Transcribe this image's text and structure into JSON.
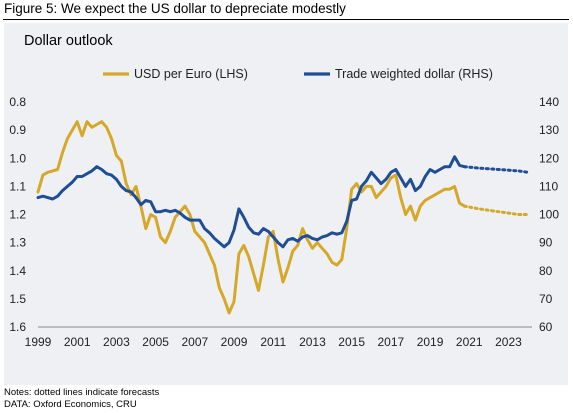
{
  "figure_title": "Figure 5: We expect the US dollar to depreciate modestly",
  "notes": [
    "Notes: dotted lines indicate forecasts",
    "DATA: Oxford Economics, CRU"
  ],
  "colors": {
    "usd_eur": "#d6a82a",
    "twd": "#1f4e96",
    "panel_bg": "#eef0f4"
  },
  "chart_data": {
    "type": "line",
    "title": "Dollar outlook",
    "xlabel": "",
    "ylabel_left": "",
    "ylabel_right": "",
    "x_ticks": [
      "1999",
      "2001",
      "2003",
      "2005",
      "2007",
      "2009",
      "2011",
      "2013",
      "2015",
      "2017",
      "2019",
      "2021",
      "2023"
    ],
    "y_left_ticks": [
      "0.8",
      "0.9",
      "1.0",
      "1.1",
      "1.2",
      "1.3",
      "1.4",
      "1.5",
      "1.6"
    ],
    "y_right_ticks": [
      "140",
      "130",
      "120",
      "110",
      "100",
      "90",
      "80",
      "70",
      "60"
    ],
    "y_left_range": [
      0.8,
      1.6
    ],
    "y_left_inverted": true,
    "y_right_range": [
      60,
      140
    ],
    "x_range": [
      1999,
      2024.2
    ],
    "grid": false,
    "legend_position": "top",
    "series": [
      {
        "name": "USD per Euro (LHS)",
        "axis": "left",
        "color": "#d6a82a",
        "actual": [
          [
            1999.0,
            1.12
          ],
          [
            1999.25,
            1.06
          ],
          [
            1999.5,
            1.05
          ],
          [
            2000.0,
            1.04
          ],
          [
            2000.25,
            0.98
          ],
          [
            2000.5,
            0.93
          ],
          [
            2000.75,
            0.9
          ],
          [
            2001.0,
            0.87
          ],
          [
            2001.25,
            0.92
          ],
          [
            2001.5,
            0.87
          ],
          [
            2001.75,
            0.89
          ],
          [
            2002.0,
            0.88
          ],
          [
            2002.25,
            0.87
          ],
          [
            2002.5,
            0.89
          ],
          [
            2002.75,
            0.93
          ],
          [
            2003.0,
            0.99
          ],
          [
            2003.25,
            1.01
          ],
          [
            2003.5,
            1.09
          ],
          [
            2003.75,
            1.13
          ],
          [
            2004.0,
            1.1
          ],
          [
            2004.25,
            1.17
          ],
          [
            2004.5,
            1.25
          ],
          [
            2004.75,
            1.2
          ],
          [
            2005.0,
            1.21
          ],
          [
            2005.25,
            1.28
          ],
          [
            2005.5,
            1.3
          ],
          [
            2005.75,
            1.26
          ],
          [
            2006.0,
            1.21
          ],
          [
            2006.25,
            1.19
          ],
          [
            2006.5,
            1.17
          ],
          [
            2006.75,
            1.2
          ],
          [
            2007.0,
            1.26
          ],
          [
            2007.25,
            1.28
          ],
          [
            2007.5,
            1.3
          ],
          [
            2007.75,
            1.34
          ],
          [
            2008.0,
            1.38
          ],
          [
            2008.25,
            1.46
          ],
          [
            2008.5,
            1.5
          ],
          [
            2008.75,
            1.55
          ],
          [
            2009.0,
            1.51
          ],
          [
            2009.25,
            1.34
          ],
          [
            2009.5,
            1.31
          ],
          [
            2009.75,
            1.35
          ],
          [
            2010.0,
            1.41
          ],
          [
            2010.25,
            1.47
          ],
          [
            2010.5,
            1.38
          ],
          [
            2010.75,
            1.28
          ],
          [
            2011.0,
            1.26
          ],
          [
            2011.25,
            1.36
          ],
          [
            2011.5,
            1.44
          ],
          [
            2011.75,
            1.39
          ],
          [
            2012.0,
            1.33
          ],
          [
            2012.25,
            1.31
          ],
          [
            2012.5,
            1.25
          ],
          [
            2012.75,
            1.29
          ],
          [
            2013.0,
            1.32
          ],
          [
            2013.25,
            1.3
          ],
          [
            2013.5,
            1.32
          ],
          [
            2013.75,
            1.34
          ],
          [
            2014.0,
            1.37
          ],
          [
            2014.25,
            1.38
          ],
          [
            2014.5,
            1.36
          ],
          [
            2014.75,
            1.25
          ],
          [
            2015.0,
            1.11
          ],
          [
            2015.25,
            1.09
          ],
          [
            2015.5,
            1.12
          ],
          [
            2015.75,
            1.1
          ],
          [
            2016.0,
            1.1
          ],
          [
            2016.25,
            1.14
          ],
          [
            2016.5,
            1.12
          ],
          [
            2016.75,
            1.1
          ],
          [
            2017.0,
            1.07
          ],
          [
            2017.25,
            1.06
          ],
          [
            2017.5,
            1.14
          ],
          [
            2017.75,
            1.2
          ],
          [
            2018.0,
            1.17
          ],
          [
            2018.25,
            1.22
          ],
          [
            2018.5,
            1.17
          ],
          [
            2018.75,
            1.15
          ],
          [
            2019.0,
            1.14
          ],
          [
            2019.25,
            1.13
          ],
          [
            2019.5,
            1.12
          ],
          [
            2019.75,
            1.11
          ],
          [
            2020.0,
            1.11
          ],
          [
            2020.25,
            1.1
          ],
          [
            2020.5,
            1.16
          ],
          [
            2020.75,
            1.17
          ]
        ],
        "forecast": [
          [
            2020.75,
            1.17
          ],
          [
            2021.5,
            1.18
          ],
          [
            2022.5,
            1.19
          ],
          [
            2023.5,
            1.2
          ],
          [
            2024.0,
            1.2
          ]
        ]
      },
      {
        "name": "Trade weighted dollar (RHS)",
        "axis": "right",
        "color": "#1f4e96",
        "actual": [
          [
            1999.0,
            106
          ],
          [
            1999.25,
            106.5
          ],
          [
            1999.5,
            106
          ],
          [
            1999.75,
            105.5
          ],
          [
            2000.0,
            106.5
          ],
          [
            2000.25,
            108.5
          ],
          [
            2000.5,
            110
          ],
          [
            2000.75,
            111.5
          ],
          [
            2001.0,
            113.5
          ],
          [
            2001.25,
            113.5
          ],
          [
            2001.5,
            114.5
          ],
          [
            2001.75,
            115.5
          ],
          [
            2002.0,
            117
          ],
          [
            2002.25,
            116
          ],
          [
            2002.5,
            114.5
          ],
          [
            2002.75,
            114
          ],
          [
            2003.0,
            112.5
          ],
          [
            2003.25,
            110
          ],
          [
            2003.5,
            108.5
          ],
          [
            2003.75,
            108
          ],
          [
            2004.0,
            106
          ],
          [
            2004.25,
            103.5
          ],
          [
            2004.5,
            105
          ],
          [
            2004.75,
            104.5
          ],
          [
            2005.0,
            101
          ],
          [
            2005.25,
            101
          ],
          [
            2005.5,
            101.5
          ],
          [
            2005.75,
            101
          ],
          [
            2006.0,
            101.5
          ],
          [
            2006.25,
            100.5
          ],
          [
            2006.5,
            99
          ],
          [
            2006.75,
            98
          ],
          [
            2007.0,
            98
          ],
          [
            2007.25,
            98
          ],
          [
            2007.5,
            95
          ],
          [
            2007.75,
            93.5
          ],
          [
            2008.0,
            91.5
          ],
          [
            2008.25,
            90
          ],
          [
            2008.5,
            88.5
          ],
          [
            2008.75,
            90
          ],
          [
            2009.0,
            94.5
          ],
          [
            2009.25,
            102
          ],
          [
            2009.5,
            99
          ],
          [
            2009.75,
            95.5
          ],
          [
            2010.0,
            93.5
          ],
          [
            2010.25,
            93
          ],
          [
            2010.5,
            95
          ],
          [
            2010.75,
            94
          ],
          [
            2011.0,
            92
          ],
          [
            2011.25,
            90
          ],
          [
            2011.5,
            88.5
          ],
          [
            2011.75,
            91
          ],
          [
            2012.0,
            91.5
          ],
          [
            2012.25,
            90.5
          ],
          [
            2012.5,
            92
          ],
          [
            2012.75,
            92.5
          ],
          [
            2013.0,
            91.5
          ],
          [
            2013.25,
            91
          ],
          [
            2013.5,
            92
          ],
          [
            2013.75,
            92.5
          ],
          [
            2014.0,
            93.5
          ],
          [
            2014.25,
            93
          ],
          [
            2014.5,
            93.5
          ],
          [
            2014.75,
            97.5
          ],
          [
            2015.0,
            105
          ],
          [
            2015.25,
            105.5
          ],
          [
            2015.5,
            110
          ],
          [
            2015.75,
            112
          ],
          [
            2016.0,
            115
          ],
          [
            2016.25,
            113
          ],
          [
            2016.5,
            111
          ],
          [
            2016.75,
            112.5
          ],
          [
            2017.0,
            115
          ],
          [
            2017.25,
            116
          ],
          [
            2017.5,
            113
          ],
          [
            2017.75,
            110
          ],
          [
            2018.0,
            112.5
          ],
          [
            2018.25,
            108.5
          ],
          [
            2018.5,
            110
          ],
          [
            2018.75,
            113.5
          ],
          [
            2019.0,
            116
          ],
          [
            2019.25,
            115
          ],
          [
            2019.5,
            116
          ],
          [
            2019.75,
            117
          ],
          [
            2020.0,
            117
          ],
          [
            2020.25,
            120.5
          ],
          [
            2020.5,
            117.5
          ],
          [
            2020.75,
            117
          ]
        ],
        "forecast": [
          [
            2020.75,
            117
          ],
          [
            2021.5,
            116.5
          ],
          [
            2022.5,
            116
          ],
          [
            2023.5,
            115.5
          ],
          [
            2024.0,
            115
          ]
        ]
      }
    ]
  }
}
